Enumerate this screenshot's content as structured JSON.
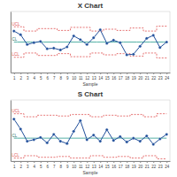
{
  "chart_data": [
    {
      "type": "line",
      "title": "X Chart",
      "x_label": "Sample",
      "categories": [
        "1",
        "2",
        "3",
        "4",
        "5",
        "6",
        "7",
        "8",
        "9",
        "10",
        "11",
        "12",
        "13",
        "14",
        "15",
        "16",
        "17",
        "18",
        "19",
        "20",
        "21",
        "22",
        "23",
        "24"
      ],
      "ylim": [
        0,
        10
      ],
      "tick_labels": "x",
      "series": [
        {
          "name": "UCL",
          "color": "#e05050",
          "type": "step",
          "line_style": "dashed",
          "values": [
            7.5,
            7.5,
            6.8,
            6.8,
            7.2,
            7.2,
            7.2,
            6.9,
            6.9,
            7.4,
            7.4,
            7.4,
            6.8,
            6.8,
            7.1,
            7.1,
            6.9,
            6.9,
            7.3,
            7.3,
            6.8,
            6.8,
            7.6,
            7.6
          ]
        },
        {
          "name": "CL",
          "color": "#2a9d8f",
          "type": "step",
          "line_style": "solid",
          "values": [
            5,
            5,
            5,
            5,
            5,
            5,
            5,
            5,
            5,
            5,
            5,
            5,
            5,
            5,
            5,
            5,
            5,
            5,
            5,
            5,
            5,
            5,
            5,
            5
          ]
        },
        {
          "name": "LCL",
          "color": "#e05050",
          "type": "step",
          "line_style": "dashed",
          "values": [
            2.5,
            2.5,
            3.2,
            3.2,
            2.8,
            2.8,
            2.8,
            3.1,
            3.1,
            2.6,
            2.6,
            2.6,
            3.2,
            3.2,
            2.9,
            2.9,
            3.1,
            3.1,
            2.7,
            2.7,
            3.2,
            3.2,
            2.4,
            2.4
          ]
        },
        {
          "color": "#1f4e9a",
          "type": "line",
          "line_style": "solid",
          "marker": "circle",
          "values": [
            6.8,
            6.2,
            4.6,
            4.9,
            5.1,
            3.9,
            4.0,
            3.7,
            4.2,
            6.0,
            5.4,
            4.6,
            5.7,
            7.0,
            4.8,
            5.3,
            4.9,
            2.9,
            3.0,
            4.3,
            5.6,
            6.1,
            4.1,
            5.0
          ]
        }
      ]
    },
    {
      "type": "line",
      "title": "S Chart",
      "x_label": "Sample",
      "categories": [
        "1",
        "2",
        "3",
        "4",
        "5",
        "6",
        "7",
        "8",
        "9",
        "10",
        "11",
        "12",
        "13",
        "14",
        "15",
        "16",
        "17",
        "18",
        "19",
        "20",
        "21",
        "22",
        "23",
        "24"
      ],
      "ylim": [
        0,
        8
      ],
      "tick_labels": "x",
      "series": [
        {
          "name": "UCL",
          "color": "#e05050",
          "type": "step",
          "line_style": "dashed",
          "values": [
            6.2,
            6.2,
            5.8,
            5.8,
            6.0,
            6.0,
            6.0,
            5.9,
            5.9,
            6.1,
            6.1,
            6.1,
            5.8,
            5.8,
            6.0,
            6.0,
            5.9,
            5.9,
            6.1,
            6.1,
            5.8,
            5.8,
            6.2,
            6.2
          ]
        },
        {
          "name": "CL",
          "color": "#2a9d8f",
          "type": "step",
          "line_style": "solid",
          "values": [
            3,
            3,
            3,
            3,
            3,
            3,
            3,
            3,
            3,
            3,
            3,
            3,
            3,
            3,
            3,
            3,
            3,
            3,
            3,
            3,
            3,
            3,
            3,
            3
          ]
        },
        {
          "name": "LCL",
          "color": "#e05050",
          "type": "step",
          "line_style": "dashed",
          "values": [
            0.4,
            0.4,
            0.7,
            0.7,
            0.5,
            0.5,
            0.5,
            0.6,
            0.6,
            0.4,
            0.4,
            0.4,
            0.7,
            0.7,
            0.5,
            0.5,
            0.6,
            0.6,
            0.4,
            0.4,
            0.7,
            0.7,
            0.3,
            0.3
          ]
        },
        {
          "color": "#1f4e9a",
          "type": "line",
          "line_style": "solid",
          "marker": "circle",
          "values": [
            5.5,
            4.2,
            2.6,
            2.8,
            3.1,
            2.4,
            3.5,
            2.6,
            2.3,
            3.9,
            5.3,
            2.8,
            3.4,
            2.6,
            4.1,
            2.7,
            3.2,
            2.5,
            3.0,
            2.6,
            3.3,
            2.2,
            2.9,
            3.5
          ]
        }
      ]
    }
  ]
}
